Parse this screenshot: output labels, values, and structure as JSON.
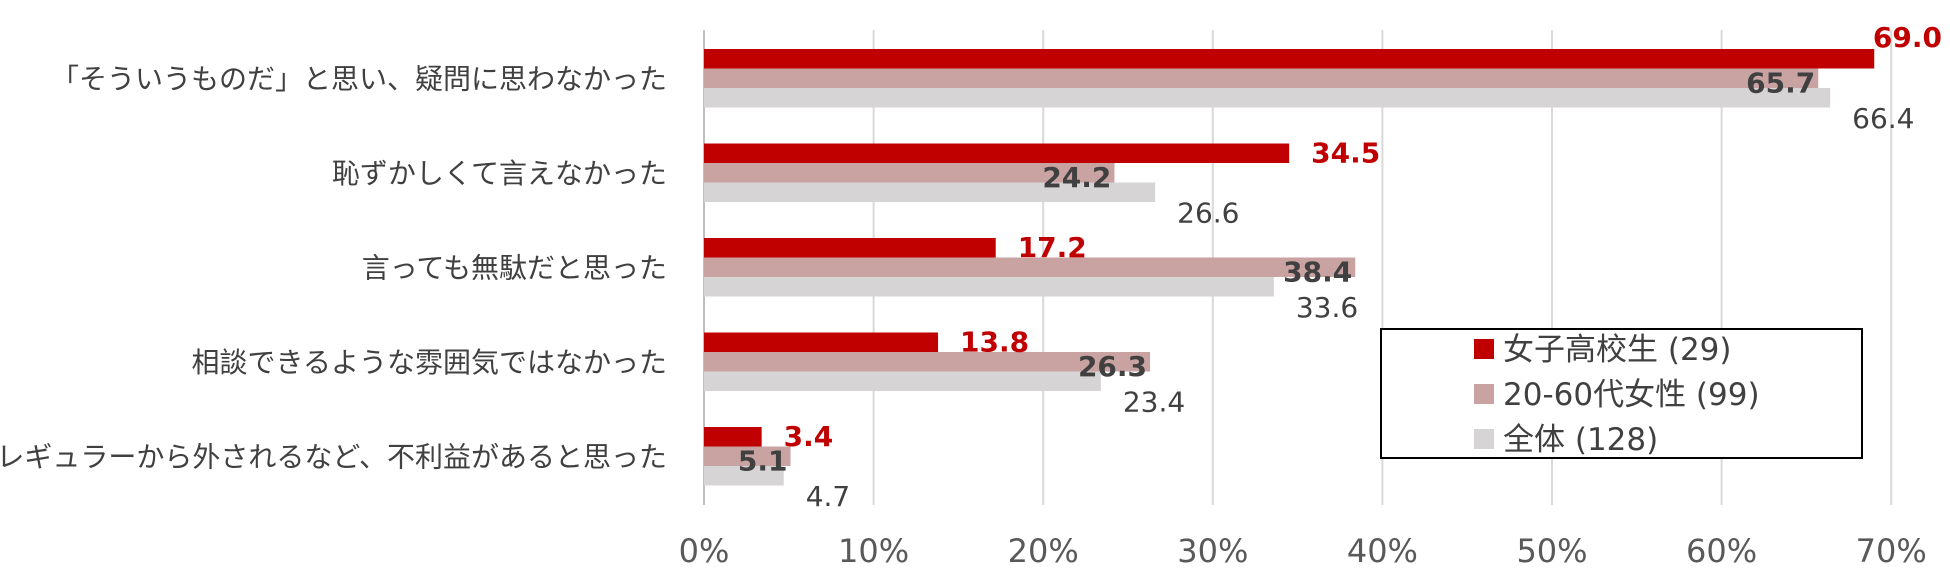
{
  "chart_data": {
    "type": "bar",
    "orientation": "horizontal",
    "categories": [
      "「そういうものだ」と思い、疑問に思わなかった",
      "恥ずかしくて言えなかった",
      "言っても無駄だと思った",
      "相談できるような雰囲気ではなかった",
      "レギュラーから外されるなど、不利益があると思った"
    ],
    "series": [
      {
        "name": "女子高校生 (29)",
        "color": "#C00000",
        "values": [
          69.0,
          34.5,
          17.2,
          13.8,
          3.4
        ],
        "labels": [
          "69.0",
          "34.5",
          "17.2",
          "13.8",
          "3.4"
        ]
      },
      {
        "name": "20-60代女性 (99)",
        "color": "#C9A2A2",
        "values": [
          65.7,
          24.2,
          38.4,
          26.3,
          5.1
        ],
        "labels": [
          "65.7",
          "24.2",
          "38.4",
          "26.3",
          "5.1"
        ]
      },
      {
        "name": "全体 (128)",
        "color": "#D6D4D4",
        "values": [
          66.4,
          26.6,
          33.6,
          23.4,
          4.7
        ],
        "labels": [
          "66.4",
          "26.6",
          "33.6",
          "23.4",
          "4.7"
        ]
      }
    ],
    "xlim": [
      0,
      70
    ],
    "xticks": [
      0,
      10,
      20,
      30,
      40,
      50,
      60,
      70
    ],
    "tick_labels": [
      "0%",
      "10%",
      "20%",
      "30%",
      "40%",
      "50%",
      "60%",
      "70%"
    ],
    "grid": true,
    "legend_position": "lower-right",
    "label_colors": [
      "#C00000",
      "#404040",
      "#404040"
    ]
  }
}
